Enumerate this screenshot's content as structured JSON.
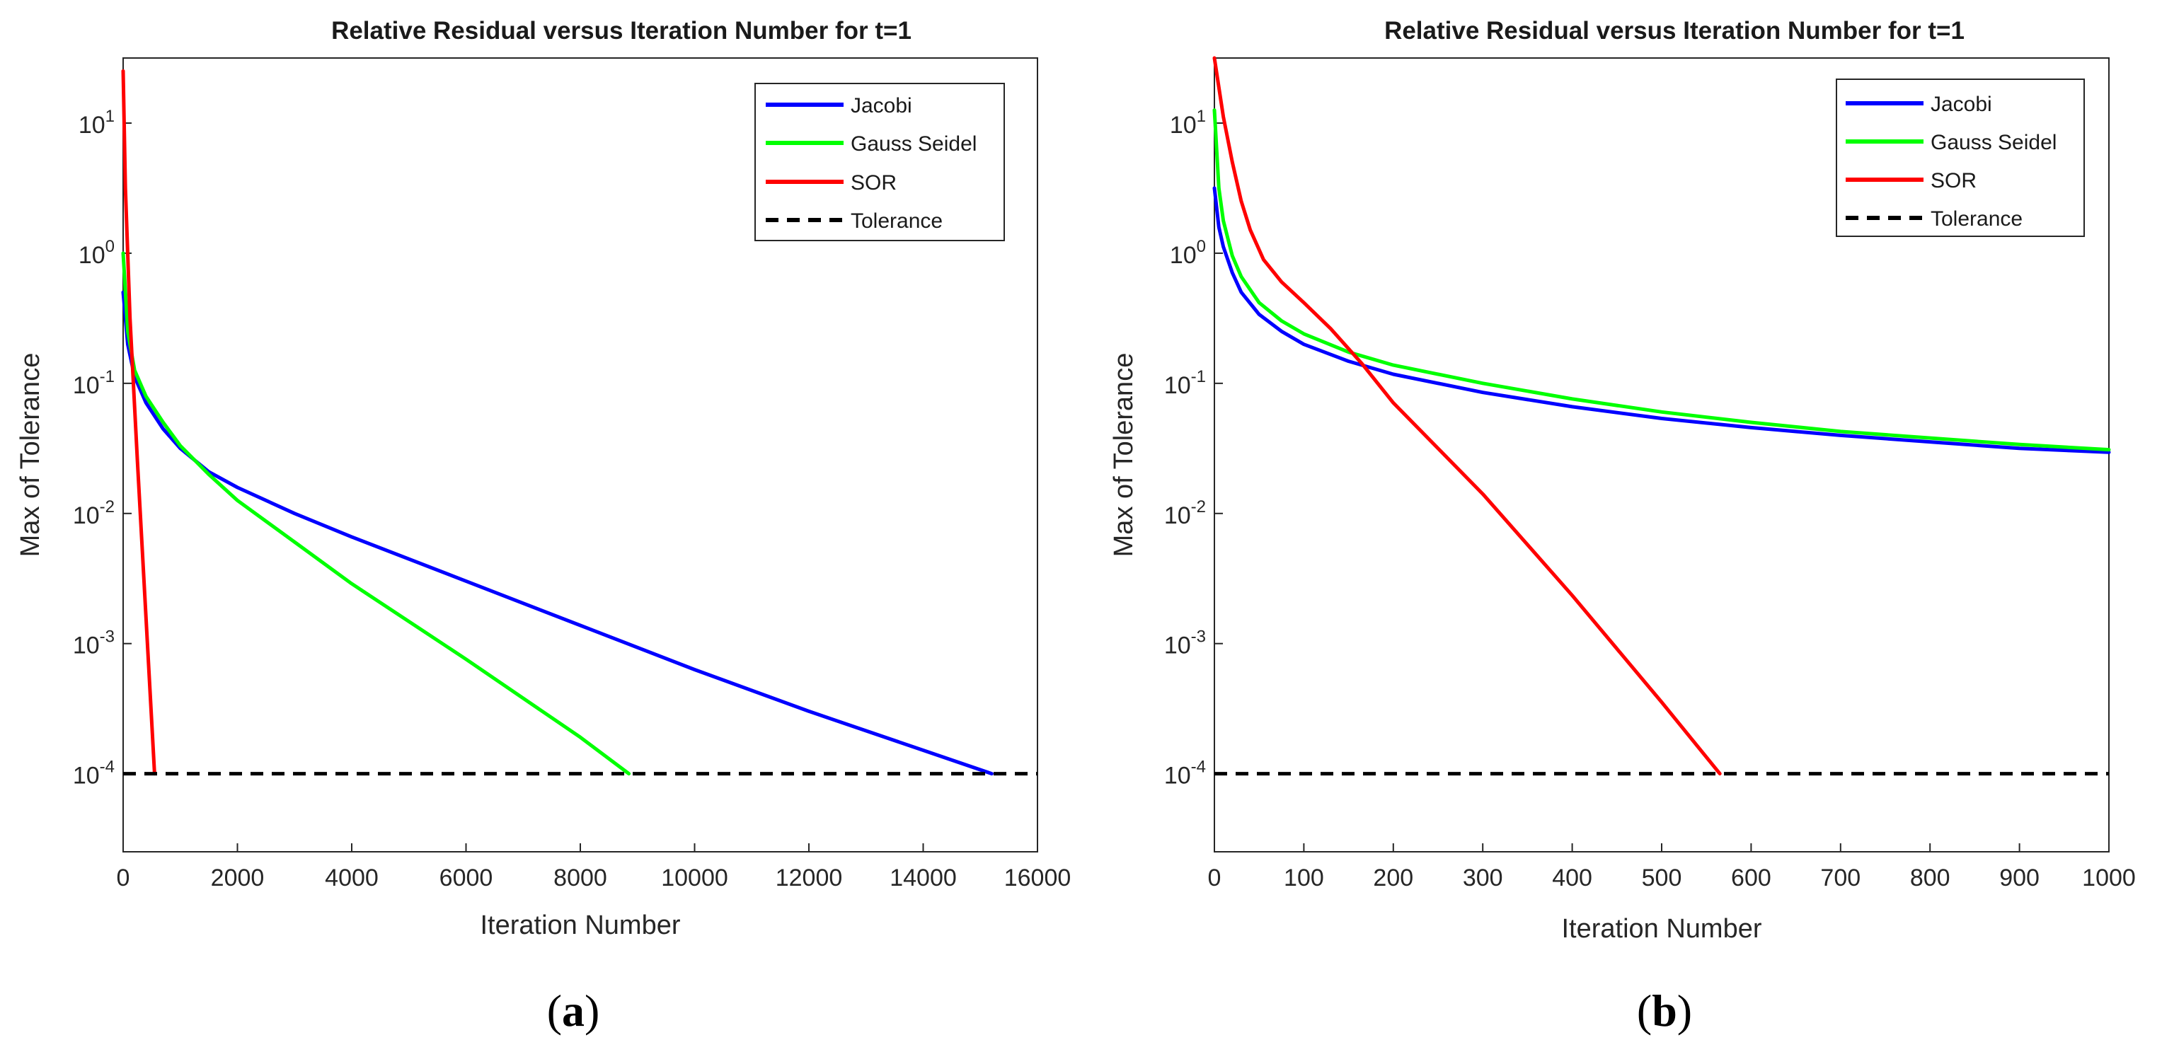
{
  "chart_data": [
    {
      "type": "line",
      "panel_label": "a",
      "title": "Relative Residual versus Iteration Number for t=1",
      "xlabel": "Iteration Number",
      "ylabel": "Max of Tolerance",
      "xlim": [
        0,
        16000
      ],
      "ylim_log10": [
        -4.6,
        1.5
      ],
      "yscale": "log",
      "xticks": [
        0,
        2000,
        4000,
        6000,
        8000,
        10000,
        12000,
        14000,
        16000
      ],
      "yticks": [
        {
          "base": "10",
          "exp": "-4",
          "value": -4
        },
        {
          "base": "10",
          "exp": "-3",
          "value": -3
        },
        {
          "base": "10",
          "exp": "-2",
          "value": -2
        },
        {
          "base": "10",
          "exp": "-1",
          "value": -1
        },
        {
          "base": "10",
          "exp": "0",
          "value": 0
        },
        {
          "base": "10",
          "exp": "1",
          "value": 1
        }
      ],
      "legend_position": "top-right",
      "series": [
        {
          "name": "Jacobi",
          "color": "#0000ff",
          "dashed": false,
          "points": [
            [
              0,
              -0.3
            ],
            [
              80,
              -0.7
            ],
            [
              200,
              -0.95
            ],
            [
              400,
              -1.15
            ],
            [
              700,
              -1.35
            ],
            [
              1000,
              -1.5
            ],
            [
              1500,
              -1.68
            ],
            [
              2000,
              -1.8
            ],
            [
              3000,
              -2.0
            ],
            [
              4000,
              -2.18
            ],
            [
              6000,
              -2.52
            ],
            [
              8000,
              -2.86
            ],
            [
              10000,
              -3.2
            ],
            [
              12000,
              -3.52
            ],
            [
              14000,
              -3.82
            ],
            [
              15200,
              -4.0
            ]
          ]
        },
        {
          "name": "Gauss Seidel",
          "color": "#00ff00",
          "dashed": false,
          "points": [
            [
              0,
              0.0
            ],
            [
              80,
              -0.6
            ],
            [
              200,
              -0.9
            ],
            [
              400,
              -1.1
            ],
            [
              700,
              -1.3
            ],
            [
              1000,
              -1.48
            ],
            [
              1500,
              -1.7
            ],
            [
              2000,
              -1.9
            ],
            [
              3000,
              -2.22
            ],
            [
              4000,
              -2.54
            ],
            [
              6000,
              -3.12
            ],
            [
              8000,
              -3.72
            ],
            [
              8850,
              -4.0
            ]
          ]
        },
        {
          "name": "SOR",
          "color": "#ff0000",
          "dashed": false,
          "points": [
            [
              0,
              1.4
            ],
            [
              40,
              0.5
            ],
            [
              120,
              -0.5
            ],
            [
              250,
              -1.6
            ],
            [
              400,
              -2.8
            ],
            [
              550,
              -4.0
            ]
          ]
        },
        {
          "name": "Tolerance",
          "color": "#000000",
          "dashed": true,
          "points": [
            [
              0,
              -4.0
            ],
            [
              16000,
              -4.0
            ]
          ]
        }
      ]
    },
    {
      "type": "line",
      "panel_label": "b",
      "title": "Relative Residual versus Iteration Number for t=1",
      "xlabel": "Iteration Number",
      "ylabel": "Max of Tolerance",
      "xlim": [
        0,
        1000
      ],
      "ylim_log10": [
        -4.6,
        1.5
      ],
      "yscale": "log",
      "xticks": [
        0,
        100,
        200,
        300,
        400,
        500,
        600,
        700,
        800,
        900,
        1000
      ],
      "yticks": [
        {
          "base": "10",
          "exp": "-4",
          "value": -4
        },
        {
          "base": "10",
          "exp": "-3",
          "value": -3
        },
        {
          "base": "10",
          "exp": "-2",
          "value": -2
        },
        {
          "base": "10",
          "exp": "-1",
          "value": -1
        },
        {
          "base": "10",
          "exp": "0",
          "value": 0
        },
        {
          "base": "10",
          "exp": "1",
          "value": 1
        }
      ],
      "legend_position": "top-right",
      "series": [
        {
          "name": "Jacobi",
          "color": "#0000ff",
          "dashed": false,
          "points": [
            [
              0,
              0.5
            ],
            [
              5,
              0.2
            ],
            [
              10,
              0.05
            ],
            [
              20,
              -0.15
            ],
            [
              30,
              -0.3
            ],
            [
              50,
              -0.47
            ],
            [
              75,
              -0.6
            ],
            [
              100,
              -0.7
            ],
            [
              150,
              -0.83
            ],
            [
              200,
              -0.93
            ],
            [
              300,
              -1.07
            ],
            [
              400,
              -1.18
            ],
            [
              500,
              -1.27
            ],
            [
              600,
              -1.34
            ],
            [
              700,
              -1.4
            ],
            [
              800,
              -1.45
            ],
            [
              900,
              -1.5
            ],
            [
              1000,
              -1.53
            ]
          ]
        },
        {
          "name": "Gauss Seidel",
          "color": "#00ff00",
          "dashed": false,
          "points": [
            [
              0,
              1.1
            ],
            [
              5,
              0.5
            ],
            [
              10,
              0.25
            ],
            [
              20,
              -0.02
            ],
            [
              30,
              -0.18
            ],
            [
              50,
              -0.38
            ],
            [
              75,
              -0.52
            ],
            [
              100,
              -0.62
            ],
            [
              150,
              -0.76
            ],
            [
              200,
              -0.86
            ],
            [
              300,
              -1.0
            ],
            [
              400,
              -1.12
            ],
            [
              500,
              -1.22
            ],
            [
              600,
              -1.3
            ],
            [
              700,
              -1.37
            ],
            [
              800,
              -1.42
            ],
            [
              900,
              -1.47
            ],
            [
              1000,
              -1.51
            ]
          ]
        },
        {
          "name": "SOR",
          "color": "#ff0000",
          "dashed": false,
          "points": [
            [
              0,
              1.5
            ],
            [
              10,
              1.05
            ],
            [
              20,
              0.7
            ],
            [
              30,
              0.4
            ],
            [
              40,
              0.18
            ],
            [
              55,
              -0.05
            ],
            [
              75,
              -0.22
            ],
            [
              100,
              -0.38
            ],
            [
              130,
              -0.58
            ],
            [
              165,
              -0.85
            ],
            [
              200,
              -1.15
            ],
            [
              300,
              -1.85
            ],
            [
              400,
              -2.63
            ],
            [
              500,
              -3.45
            ],
            [
              565,
              -4.0
            ]
          ]
        },
        {
          "name": "Tolerance",
          "color": "#000000",
          "dashed": true,
          "points": [
            [
              0,
              -4.0
            ],
            [
              1000,
              -4.0
            ]
          ]
        }
      ]
    }
  ]
}
